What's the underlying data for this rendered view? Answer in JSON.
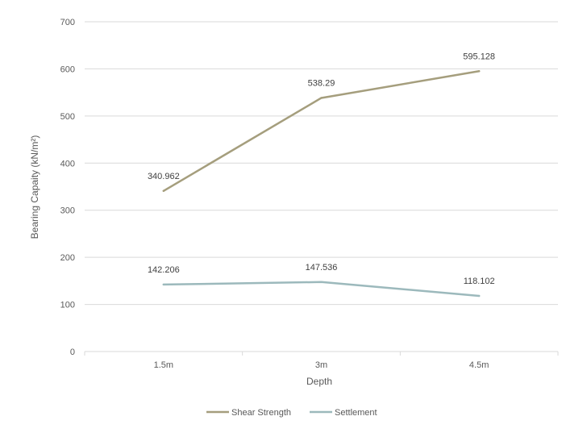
{
  "chart_data": {
    "type": "line",
    "categories": [
      "1.5m",
      "3m",
      "4.5m"
    ],
    "series": [
      {
        "name": "Shear Strength",
        "values": [
          340.962,
          538.29,
          595.128
        ],
        "labels": [
          "340.962",
          "538.29",
          "595.128"
        ],
        "color": "#a59e7d"
      },
      {
        "name": "Settlement",
        "values": [
          142.206,
          147.536,
          118.102
        ],
        "labels": [
          "142.206",
          "147.536",
          "118.102"
        ],
        "color": "#9cb9bc"
      }
    ],
    "title": "",
    "xlabel": "Depth",
    "ylabel": "Bearing Capaity (kN/m²)",
    "ylim": [
      0,
      700
    ],
    "yticks": [
      0,
      100,
      200,
      300,
      400,
      500,
      600,
      700
    ],
    "grid": true,
    "legend": "bottom"
  }
}
